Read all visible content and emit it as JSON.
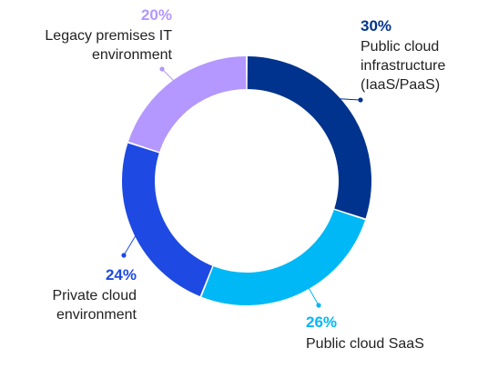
{
  "chart_data": {
    "type": "pie",
    "variant": "donut",
    "slices": [
      {
        "label_lines": [
          "Public cloud",
          "infrastructure",
          "(IaaS/PaaS)"
        ],
        "value": 30,
        "value_label": "30%",
        "color": "#00338d"
      },
      {
        "label_lines": [
          "Public cloud SaaS"
        ],
        "value": 26,
        "value_label": "26%",
        "color": "#00b8f5"
      },
      {
        "label_lines": [
          "Private cloud",
          "environment"
        ],
        "value": 24,
        "value_label": "24%",
        "color": "#1e49e2"
      },
      {
        "label_lines": [
          "Legacy premises IT",
          "environment"
        ],
        "value": 20,
        "value_label": "20%",
        "color": "#b497ff"
      }
    ]
  }
}
